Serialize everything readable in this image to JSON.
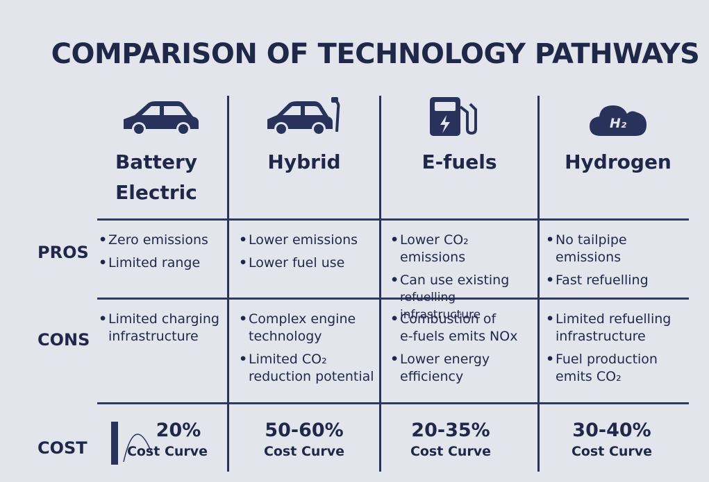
{
  "title": "COMPARISON OF TECHNOLOGY PATHWAYS",
  "columns": [
    {
      "name_line1": "Battery",
      "name_line2": "Electric",
      "icon": "car-icon"
    },
    {
      "name_line1": "Hybrid",
      "name_line2": "",
      "icon": "car-with-fuel-nozzle-icon"
    },
    {
      "name_line1": "E-fuels",
      "name_line2": "",
      "icon": "fuel-pump-bolt-icon"
    },
    {
      "name_line1": "Hydrogen",
      "name_line2": "",
      "icon": "h2-cloud-icon",
      "icon_text": "H₂"
    }
  ],
  "rows": {
    "pros": "PROS",
    "cons": "CONS",
    "cost": "COST"
  },
  "pros": [
    [
      [
        "Zero emissions"
      ],
      [
        "Limited range"
      ]
    ],
    [
      [
        "Lower emissions"
      ],
      [
        "Lower fuel use"
      ]
    ],
    [
      [
        "Lower CO₂ emissions"
      ],
      [
        "Can use existing",
        "refuelling infrastructure"
      ]
    ],
    [
      [
        "No tailpipe",
        "emissions"
      ],
      [
        "Fast refuelling"
      ]
    ]
  ],
  "cons": [
    [
      [
        "Limited charging",
        "infrastructure"
      ]
    ],
    [
      [
        "Complex engine",
        "technology"
      ],
      [
        "Limited CO₂",
        "reduction potential"
      ]
    ],
    [
      [
        "Combustion of",
        "e-fuels emits NOx"
      ],
      [
        "Lower energy",
        "efficiency"
      ]
    ],
    [
      [
        "Limited refuelling",
        "infrastructure"
      ],
      [
        "Fuel production",
        "emits CO₂"
      ]
    ]
  ],
  "cost": [
    {
      "value": "20%",
      "label": "Cost Curve"
    },
    {
      "value": "50-60%",
      "label": "Cost Curve"
    },
    {
      "value": "20-35%",
      "label": "Cost Curve"
    },
    {
      "value": "30-40%",
      "label": "Cost Curve"
    }
  ],
  "colors": {
    "background": "#e3e5ec",
    "ink": "#1f2848",
    "grid": "#2d3760",
    "icon": "#28325a"
  }
}
